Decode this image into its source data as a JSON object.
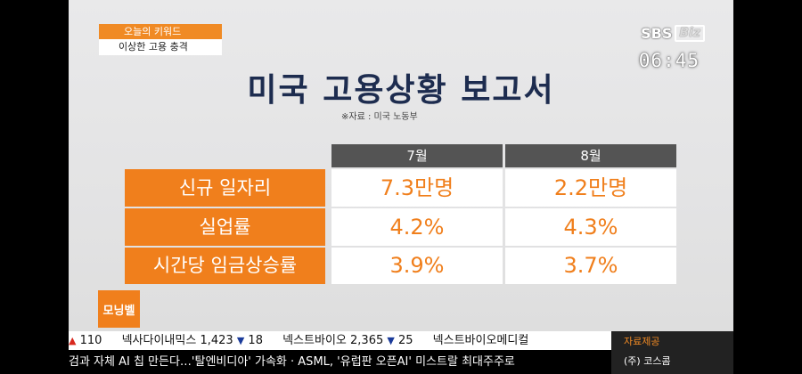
{
  "keyword": {
    "heading": "오늘의 키워드",
    "topic": "이상한 고용 충격"
  },
  "broadcaster": {
    "sbs": "SBS",
    "biz": "Biz",
    "clock": "06:45"
  },
  "title": "미국 고용상황 보고서",
  "source": "※자료 : 미국 노동부",
  "table": {
    "headers": [
      "7월",
      "8월"
    ],
    "rows": [
      {
        "label": "신규 일자리",
        "values": [
          "7.3만명",
          "2.2만명"
        ]
      },
      {
        "label": "실업률",
        "values": [
          "4.2%",
          "4.3%"
        ]
      },
      {
        "label": "시간당 임금상승률",
        "values": [
          "3.9%",
          "3.7%"
        ]
      }
    ]
  },
  "program_logo": "모닝벨",
  "ticker_stocks": [
    {
      "name": "",
      "direction": "up",
      "change": "110"
    },
    {
      "name": "넥사다이내믹스",
      "price": "1,423",
      "direction": "down",
      "change": "18"
    },
    {
      "name": "넥스트바이오",
      "price": "2,365",
      "direction": "down",
      "change": "25"
    },
    {
      "name": "넥스트바이오메디컬",
      "price": "",
      "direction": "",
      "change": ""
    }
  ],
  "ticker_side": {
    "label": "자료제공",
    "value": "(주) 코스콤"
  },
  "news_ticker": "검과 자체 AI 칩 만든다…'탈엔비디아' 가속화 · ASML, '유럽판 오픈AI' 미스트랄 최대주주로",
  "colors": {
    "accent": "#f07f1c",
    "header_gray": "#545454",
    "title_navy": "#1d2c4f"
  }
}
